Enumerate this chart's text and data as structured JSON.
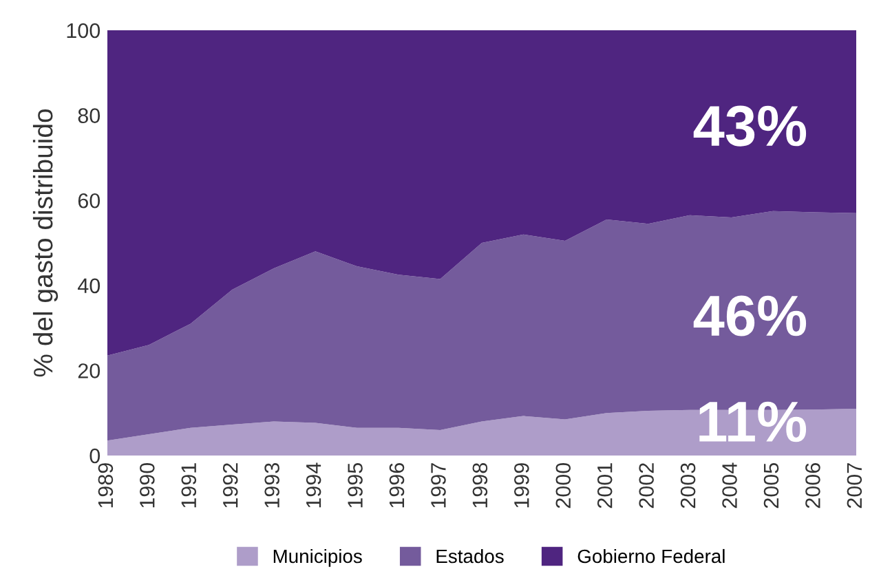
{
  "chart_data": {
    "type": "area",
    "stacked": true,
    "ylabel": "% del gasto distribuido",
    "x": [
      1989,
      1990,
      1991,
      1992,
      1993,
      1994,
      1995,
      1996,
      1997,
      1998,
      1999,
      2000,
      2001,
      2002,
      2003,
      2004,
      2005,
      2006,
      2007
    ],
    "series": [
      {
        "name": "Municipios",
        "color": "#ae9dc9",
        "values": [
          3.5,
          5,
          6.5,
          7.3,
          8,
          7.7,
          6.5,
          6.5,
          6,
          8,
          9.3,
          8.5,
          10,
          10.5,
          10.7,
          10.7,
          10.7,
          10.8,
          11
        ]
      },
      {
        "name": "Estados",
        "color": "#745b9c",
        "values": [
          20,
          21,
          24.5,
          31.7,
          36,
          40.3,
          38,
          36,
          35.5,
          42,
          42.7,
          42,
          45.5,
          44,
          45.8,
          45.3,
          46.8,
          46.4,
          46
        ]
      },
      {
        "name": "Gobierno Federal",
        "color": "#4f2580",
        "values": [
          76.5,
          74,
          69,
          61,
          56,
          52,
          55.5,
          57.5,
          58.5,
          50,
          48,
          49.5,
          44.5,
          45.5,
          43.5,
          44,
          42.5,
          42.8,
          43
        ]
      }
    ],
    "xlim": [
      1989,
      2007
    ],
    "xticks": [
      1989,
      1990,
      1991,
      1992,
      1993,
      1994,
      1995,
      1996,
      1997,
      1998,
      1999,
      2000,
      2001,
      2002,
      2003,
      2004,
      2005,
      2006,
      2007
    ],
    "ylim": [
      0,
      100
    ],
    "yticks": [
      0,
      20,
      40,
      60,
      80,
      100
    ],
    "annotations": [
      "43%",
      "46%",
      "11%"
    ],
    "legend": "bottom",
    "grid": false
  }
}
